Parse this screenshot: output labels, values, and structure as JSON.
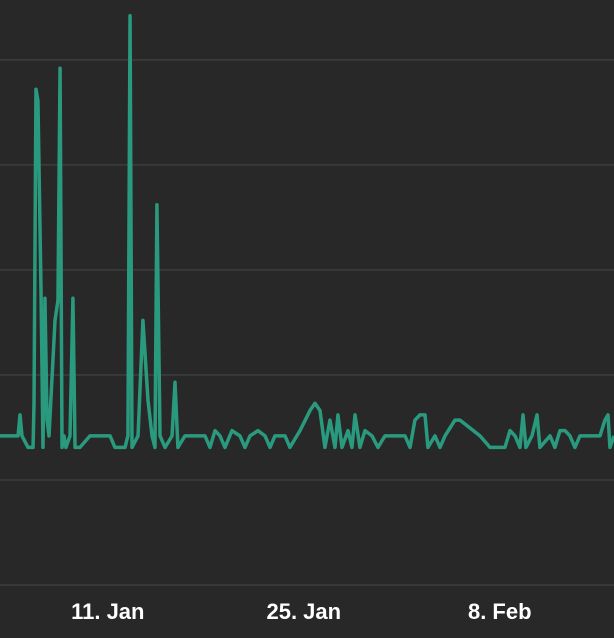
{
  "chart_data": {
    "type": "line",
    "x": [
      3.3,
      4.59,
      4.73,
      4.87,
      5.3,
      5.66,
      5.73,
      5.87,
      6.01,
      6.23,
      6.37,
      6.51,
      6.66,
      6.8,
      7.23,
      7.44,
      7.59,
      7.73,
      7.87,
      8.01,
      8.3,
      8.51,
      8.66,
      9.01,
      9.73,
      11.16,
      11.51,
      12.23,
      12.44,
      12.59,
      12.73,
      13.16,
      13.51,
      13.87,
      14.16,
      14.37,
      14.51,
      14.73,
      15.09,
      15.59,
      15.8,
      16.01,
      16.51,
      17.94,
      18.3,
      18.66,
      19.01,
      19.37,
      19.87,
      20.44,
      20.8,
      21.16,
      21.73,
      22.23,
      22.59,
      22.94,
      23.66,
      24.01,
      24.73,
      25.44,
      25.8,
      26.16,
      26.51,
      26.87,
      27.23,
      27.44,
      27.73,
      28.16,
      28.44,
      28.66,
      29.01,
      29.37,
      29.87,
      30.3,
      30.8,
      32.23,
      32.59,
      32.94,
      33.3,
      33.66,
      33.87,
      34.37,
      34.73,
      35.09,
      35.8,
      36.16,
      37.59,
      38.3,
      39.37,
      39.73,
      40.09,
      40.44,
      40.66,
      40.87,
      41.3,
      41.66,
      41.87,
      42.59,
      42.94,
      43.3,
      43.66,
      44.01,
      44.37,
      44.73,
      46.16,
      46.51,
      46.73,
      46.87,
      47.16
    ],
    "series": [
      {
        "color": "#2a9a7e",
        "values": [
          1.42,
          1.42,
          1.62,
          1.42,
          1.31,
          1.31,
          1.73,
          4.72,
          4.61,
          2.8,
          1.31,
          2.73,
          1.57,
          1.42,
          2.52,
          2.71,
          4.92,
          1.31,
          1.42,
          1.31,
          1.42,
          2.73,
          1.31,
          1.31,
          1.42,
          1.42,
          1.31,
          1.31,
          1.42,
          5.42,
          1.31,
          1.42,
          2.52,
          1.76,
          1.42,
          1.31,
          3.62,
          1.42,
          1.31,
          1.42,
          1.93,
          1.31,
          1.42,
          1.42,
          1.31,
          1.47,
          1.42,
          1.31,
          1.47,
          1.42,
          1.31,
          1.42,
          1.47,
          1.42,
          1.31,
          1.42,
          1.42,
          1.31,
          1.47,
          1.66,
          1.73,
          1.66,
          1.31,
          1.57,
          1.31,
          1.62,
          1.31,
          1.47,
          1.31,
          1.62,
          1.31,
          1.47,
          1.42,
          1.31,
          1.42,
          1.42,
          1.31,
          1.57,
          1.62,
          1.62,
          1.31,
          1.42,
          1.31,
          1.42,
          1.57,
          1.57,
          1.42,
          1.31,
          1.31,
          1.47,
          1.42,
          1.31,
          1.62,
          1.31,
          1.42,
          1.62,
          1.31,
          1.42,
          1.31,
          1.47,
          1.47,
          1.42,
          1.31,
          1.42,
          1.42,
          1.57,
          1.62,
          1.31,
          1.42
        ]
      }
    ],
    "xlim": [
      3.3,
      47.16
    ],
    "xticks": [
      {
        "value": 11,
        "label": "11. Jan"
      },
      {
        "value": 25,
        "label": "25. Jan"
      },
      {
        "value": 39,
        "label": "8. Feb"
      }
    ],
    "ylim": [
      0,
      5.57
    ],
    "yticks": [
      0,
      1,
      2,
      3,
      4,
      5
    ],
    "grid": true
  }
}
